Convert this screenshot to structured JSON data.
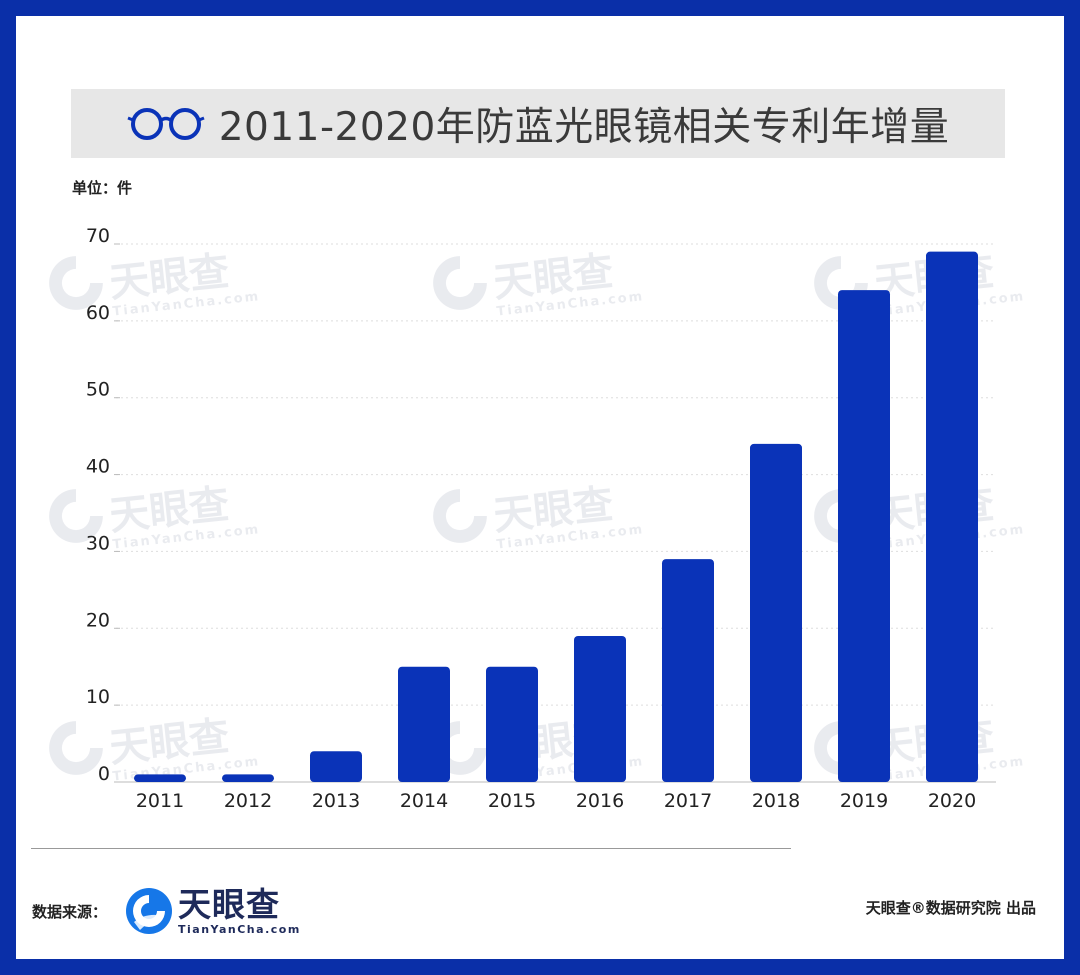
{
  "header": {
    "title": "2011-2020年防蓝光眼镜相关专利年增量",
    "icon": "glasses-icon"
  },
  "unit_label": "单位：件",
  "footer": {
    "source_label": "数据来源：",
    "logo_cn": "天眼查",
    "logo_en": "TianYanCha.com",
    "credit": "天眼查®数据研究院 出品"
  },
  "watermark": {
    "cn": "天眼查",
    "en": "TianYanCha.com"
  },
  "colors": {
    "frame": "#0a2fa8",
    "bar": "#0a33b8",
    "title_bg": "#e7e7e7"
  },
  "chart_data": {
    "type": "bar",
    "categories": [
      "2011",
      "2012",
      "2013",
      "2014",
      "2015",
      "2016",
      "2017",
      "2018",
      "2019",
      "2020"
    ],
    "values": [
      1,
      1,
      4,
      15,
      15,
      19,
      29,
      44,
      64,
      69
    ],
    "title": "2011-2020年防蓝光眼镜相关专利年增量",
    "xlabel": "",
    "ylabel": "单位：件",
    "ylim": [
      0,
      70
    ],
    "yticks": [
      0,
      10,
      20,
      30,
      40,
      50,
      60,
      70
    ],
    "grid": true,
    "legend": "none"
  }
}
